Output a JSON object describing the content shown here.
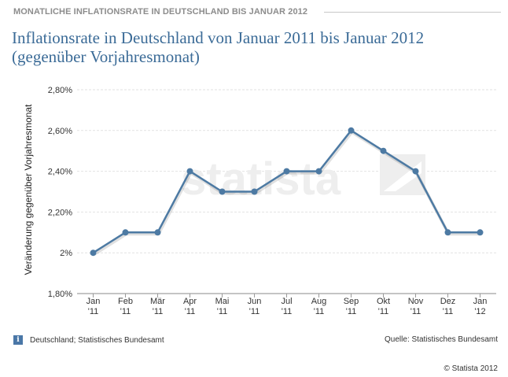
{
  "header": {
    "label": "MONATLICHE INFLATIONSRATE IN DEUTSCHLAND BIS JANUAR 2012"
  },
  "title": {
    "line1": "Inflationsrate in Deutschland von Januar 2011 bis Januar 2012",
    "line2": "(gegenüber Vorjahresmonat)"
  },
  "footer": {
    "info_text": "Deutschland; Statistisches Bundesamt",
    "source": "Quelle: Statistisches Bundesamt",
    "copyright": "© Statista 2012"
  },
  "watermark": "statista",
  "colors": {
    "line": "#4d7aa3",
    "title": "#3b6b97",
    "grid": "#e2e2e2"
  },
  "chart_data": {
    "type": "line",
    "ylabel": "Veränderung gegenüber Vorjahresmonat",
    "ylim": [
      1.8,
      2.8
    ],
    "yticks": [
      {
        "value": 2.8,
        "label": "2,80%"
      },
      {
        "value": 2.6,
        "label": "2,60%"
      },
      {
        "value": 2.4,
        "label": "2,40%"
      },
      {
        "value": 2.2,
        "label": "2,20%"
      },
      {
        "value": 2.0,
        "label": "2%"
      },
      {
        "value": 1.8,
        "label": "1,80%"
      }
    ],
    "categories": [
      [
        "Jan",
        "'11"
      ],
      [
        "Feb",
        "'11"
      ],
      [
        "Mär",
        "'11"
      ],
      [
        "Apr",
        "'11"
      ],
      [
        "Mai",
        "'11"
      ],
      [
        "Jun",
        "'11"
      ],
      [
        "Jul",
        "'11"
      ],
      [
        "Aug",
        "'11"
      ],
      [
        "Sep",
        "'11"
      ],
      [
        "Okt",
        "'11"
      ],
      [
        "Nov",
        "'11"
      ],
      [
        "Dez",
        "'11"
      ],
      [
        "Jan",
        "'12"
      ]
    ],
    "values": [
      2.0,
      2.1,
      2.1,
      2.4,
      2.3,
      2.3,
      2.4,
      2.4,
      2.6,
      2.5,
      2.4,
      2.1,
      2.1
    ],
    "grid": true,
    "legend": "none"
  }
}
